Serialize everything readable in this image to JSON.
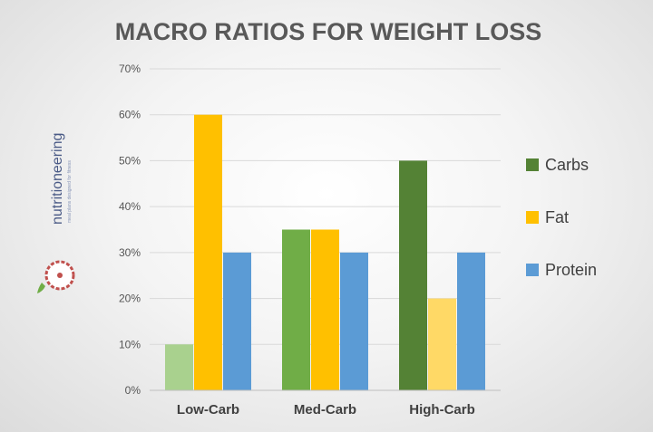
{
  "chart_data": {
    "type": "bar",
    "title": "MACRO RATIOS FOR WEIGHT LOSS",
    "categories": [
      "Low-Carb",
      "Med-Carb",
      "High-Carb"
    ],
    "series": [
      {
        "name": "Carbs",
        "values": [
          10,
          35,
          50
        ],
        "colors": [
          "#a9d18e",
          "#70ad47",
          "#548235"
        ]
      },
      {
        "name": "Fat",
        "values": [
          60,
          35,
          20
        ],
        "colors": [
          "#ffc000",
          "#ffc000",
          "#ffd966"
        ]
      },
      {
        "name": "Protein",
        "values": [
          30,
          30,
          30
        ],
        "colors": [
          "#5b9bd5",
          "#5b9bd5",
          "#5b9bd5"
        ]
      }
    ],
    "legend": [
      {
        "label": "Carbs",
        "color": "#548235"
      },
      {
        "label": "Fat",
        "color": "#ffc000"
      },
      {
        "label": "Protein",
        "color": "#5b9bd5"
      }
    ],
    "y_ticks": [
      "0%",
      "10%",
      "20%",
      "30%",
      "40%",
      "50%",
      "60%",
      "70%"
    ],
    "ylim": [
      0,
      70
    ],
    "y_unit": "%",
    "grid": true,
    "legend_position": "right",
    "xlabel": "",
    "ylabel": ""
  },
  "brand": {
    "name": "nutritioneering",
    "tagline": "meal plans designed for fitness"
  }
}
